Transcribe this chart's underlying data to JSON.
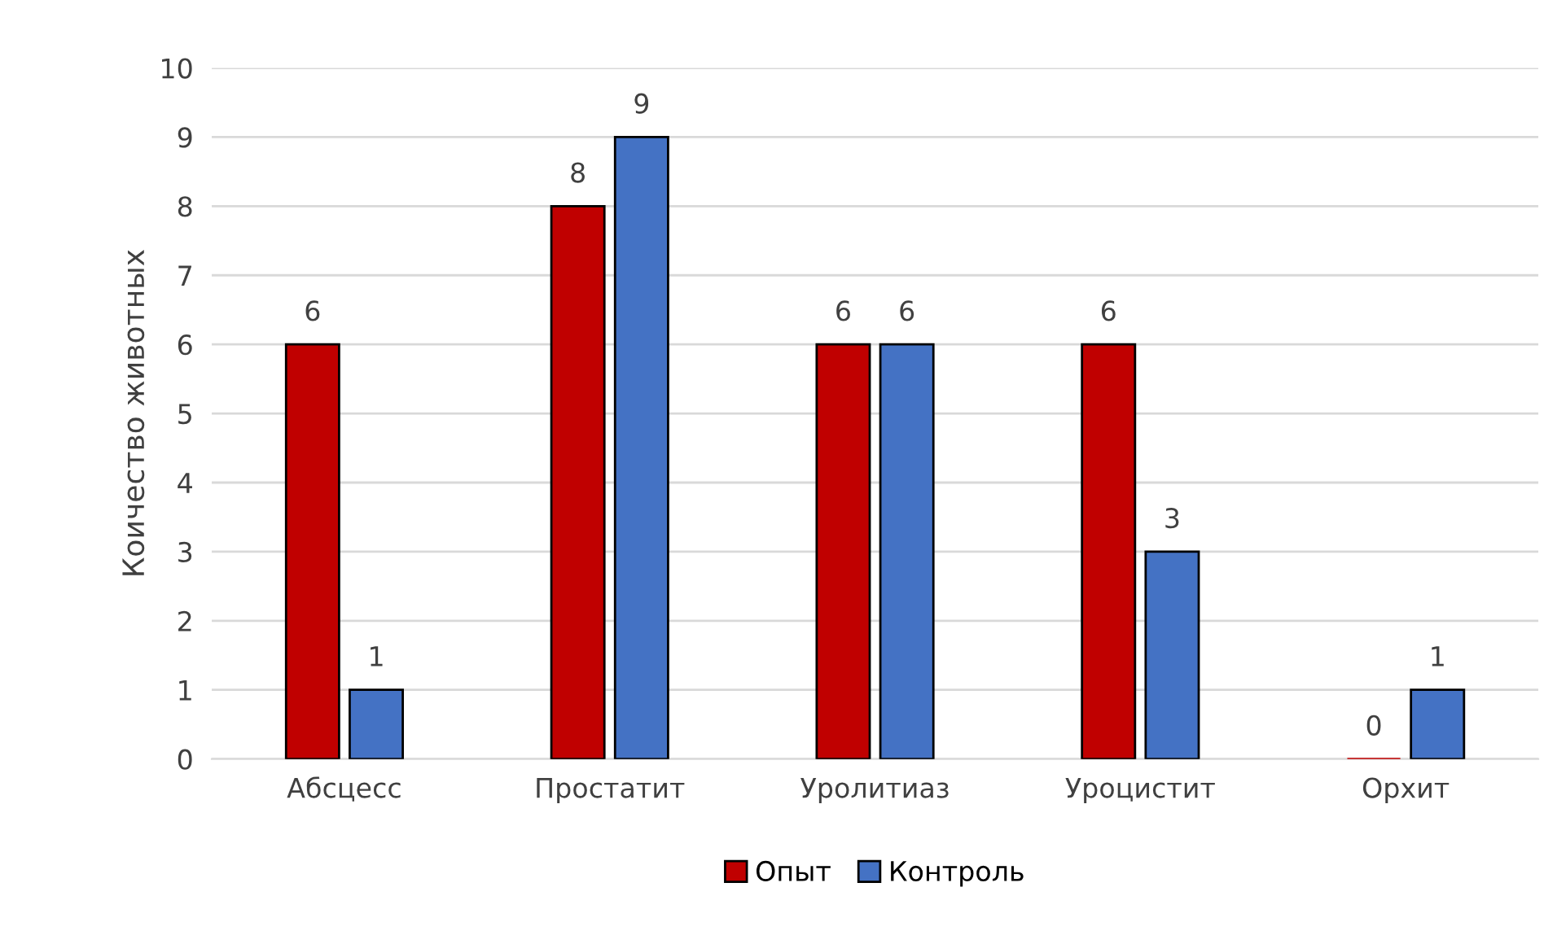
{
  "chart_data": {
    "type": "bar",
    "ylabel": "Коичество животных",
    "categories": [
      "Абсцесс",
      "Простатит",
      "Уролитиаз",
      "Уроцистит",
      "Орхит"
    ],
    "series": [
      {
        "name": "Опыт",
        "color": "#c00000",
        "values": [
          6,
          8,
          6,
          6,
          0
        ]
      },
      {
        "name": "Контроль",
        "color": "#4472c4",
        "values": [
          1,
          9,
          6,
          3,
          1
        ]
      }
    ],
    "ylim": [
      0,
      10
    ],
    "yticks": [
      0,
      1,
      2,
      3,
      4,
      5,
      6,
      7,
      8,
      9,
      10
    ],
    "grid": "y",
    "legend": "bottom",
    "data_labels": true
  }
}
